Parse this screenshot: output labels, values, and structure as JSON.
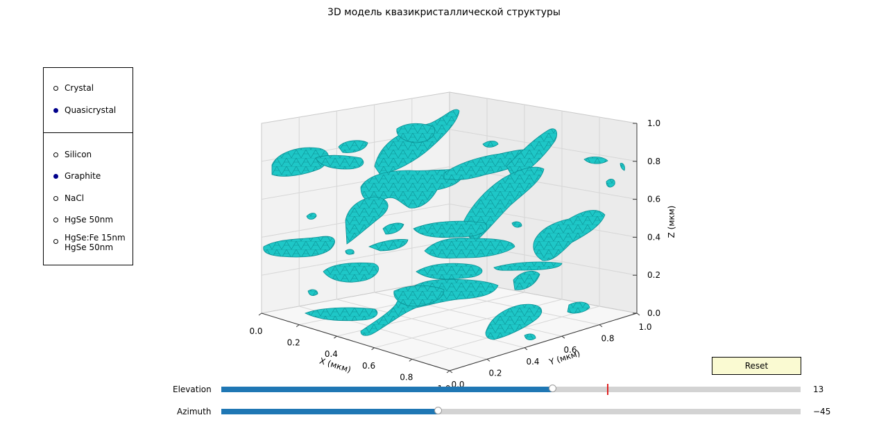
{
  "chart_data": {
    "type": "surface3d",
    "title": "3D модель квазикристаллической структуры",
    "xlabel": "X (мкм)",
    "ylabel": "Y (мкм)",
    "zlabel": "Z (мкм)",
    "xlim": [
      0,
      1
    ],
    "ylim": [
      0,
      1
    ],
    "zlim": [
      0,
      1
    ],
    "x_ticks": [
      "0.0",
      "0.2",
      "0.4",
      "0.6",
      "0.8",
      "1.0"
    ],
    "y_ticks": [
      "0.0",
      "0.2",
      "0.4",
      "0.6",
      "0.8",
      "1.0"
    ],
    "z_ticks": [
      "0.0",
      "0.2",
      "0.4",
      "0.6",
      "0.8",
      "1.0"
    ],
    "surface_color": "#1ec7c7",
    "edge_color": "#0b8f93",
    "grid": true,
    "view": {
      "elevation": 13,
      "azimuth": -45
    }
  },
  "material_selector": {
    "options": [
      {
        "label": "Crystal",
        "selected": false
      },
      {
        "label": "Quasicrystal",
        "selected": true
      }
    ]
  },
  "sample_selector": {
    "options": [
      {
        "label": "Silicon",
        "selected": false
      },
      {
        "label": "Graphite",
        "selected": true
      },
      {
        "label": "NaCl",
        "selected": false
      },
      {
        "label": "HgSe 50nm",
        "selected": false
      },
      {
        "label": "HgSe:Fe 15nm\nHgSe 50nm",
        "selected": false
      }
    ]
  },
  "reset_label": "Reset",
  "sliders": {
    "elevation": {
      "label": "Elevation",
      "value_text": "13",
      "value": 13,
      "min": -90,
      "max": 90,
      "initial": 30,
      "fill_color": "#1f77b4",
      "marker_color": "#e02020"
    },
    "azimuth": {
      "label": "Azimuth",
      "value_text": "−45",
      "value": -45,
      "min": -180,
      "max": 180,
      "fill_color": "#1f77b4"
    }
  }
}
